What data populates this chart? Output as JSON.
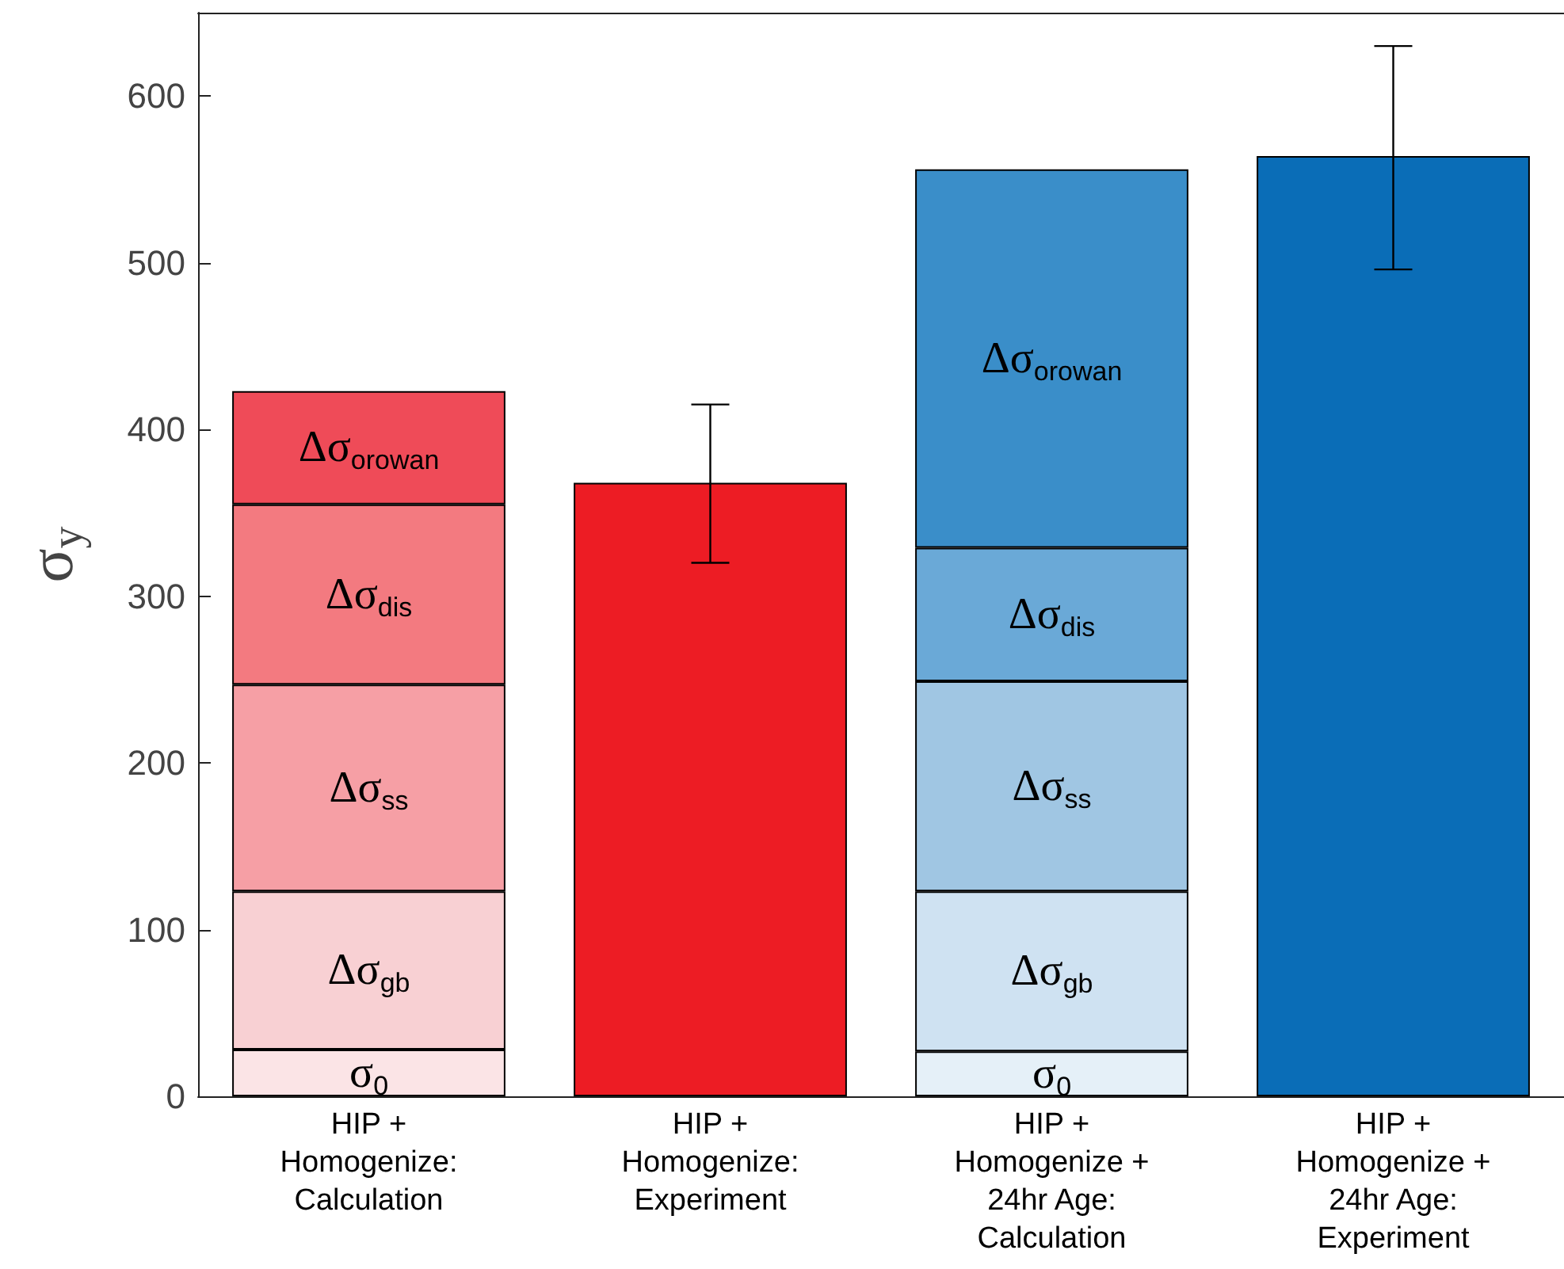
{
  "chart_data": {
    "type": "bar",
    "stacked": true,
    "ylabel": "σ$_{y}$",
    "categories": [
      "HIP +\nHomogenize:\nCalculation",
      "HIP +\nHomogenize:\nExperiment",
      "HIP +\nHomogenize +\n24hr Age:\nCalculation",
      "HIP +\nHomogenize +\n24hr Age:\nExperiment"
    ],
    "series": [
      {
        "name": "σ$_{0}$",
        "values": [
          28,
          null,
          27,
          null
        ],
        "colors": [
          "#fbe4e6",
          null,
          "#e5f0f8",
          null
        ]
      },
      {
        "name": "Δσ$_{gb}$",
        "values": [
          95,
          null,
          96,
          null
        ],
        "colors": [
          "#f8d0d3",
          null,
          "#cfe2f2",
          null
        ]
      },
      {
        "name": "Δσ$_{ss}$",
        "values": [
          124,
          null,
          126,
          null
        ],
        "colors": [
          "#f69fa5",
          null,
          "#a0c6e3",
          null
        ]
      },
      {
        "name": "Δσ$_{dis}$",
        "values": [
          108,
          null,
          80,
          null
        ],
        "colors": [
          "#f37a80",
          null,
          "#6aa9d7",
          null
        ]
      },
      {
        "name": "Δσ$_{orowan}$",
        "values": [
          68,
          null,
          227,
          null
        ],
        "colors": [
          "#ef4b58",
          null,
          "#3a8ec9",
          null
        ]
      },
      {
        "values": [
          null,
          368,
          null,
          564
        ],
        "colors": [
          null,
          "#ed1c24",
          null,
          "#0a6db7"
        ],
        "errors": [
          null,
          [
            320,
            415
          ],
          null,
          [
            496,
            630
          ]
        ]
      }
    ],
    "ylim": [
      0,
      650
    ],
    "yticks": [
      0,
      100,
      200,
      300,
      400,
      500,
      600
    ],
    "grid": false,
    "legend": false
  }
}
